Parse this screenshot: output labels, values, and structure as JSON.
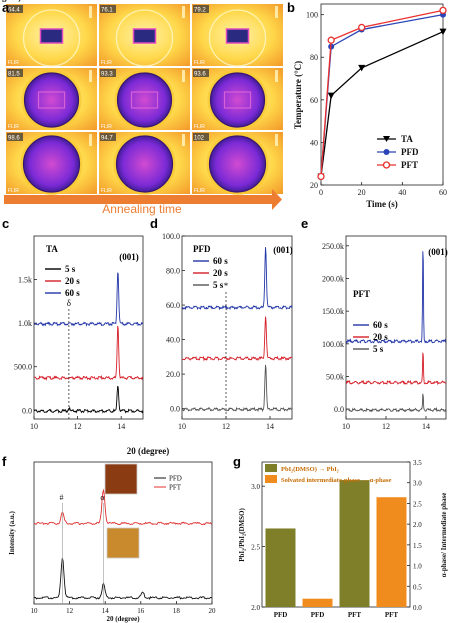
{
  "panels": {
    "a": {
      "label": "a",
      "caption": "Annealing time",
      "readouts": [
        [
          "64.4",
          "76.1",
          "79.2"
        ],
        [
          "81.5",
          "93.3",
          "93.6"
        ],
        [
          "98.6",
          "94.7",
          "102"
        ]
      ],
      "brand": "FLIR",
      "colors": {
        "arrow": "#ed7d31",
        "hot": "#ffe24a",
        "ring": "#f7c72f"
      }
    },
    "b": {
      "label": "b"
    },
    "c": {
      "label": "c"
    },
    "d": {
      "label": "d"
    },
    "e": {
      "label": "e"
    },
    "f": {
      "label": "f"
    },
    "g": {
      "label": "g"
    }
  },
  "chart_data": [
    {
      "id": "b",
      "type": "line",
      "x": [
        0,
        5,
        20,
        60
      ],
      "xlabel": "Time (s)",
      "ylabel": "Temperature (°C)",
      "xlim": [
        0,
        60
      ],
      "ylim": [
        20,
        105
      ],
      "xticks": [
        "0",
        "20",
        "40",
        "60"
      ],
      "yticks": [
        "20",
        "40",
        "60",
        "80",
        "100"
      ],
      "legend_position": "bottom-right",
      "series": [
        {
          "name": "TA",
          "values": [
            24,
            62,
            75,
            92
          ],
          "color": "#000000",
          "marker": "triangle-down"
        },
        {
          "name": "PFD",
          "values": [
            24,
            85,
            93,
            100
          ],
          "color": "#2b45b6",
          "marker": "circle"
        },
        {
          "name": "PFT",
          "values": [
            24,
            88,
            94,
            102
          ],
          "color": "#e8302e",
          "marker": "circle-open"
        }
      ]
    },
    {
      "id": "c",
      "type": "line",
      "title": "TA",
      "xlabel": "20 (degree)",
      "xlim": [
        10,
        15
      ],
      "ylim": [
        -100,
        2000
      ],
      "xticks": [
        "10",
        "12",
        "14"
      ],
      "yticks": [
        "0.0",
        "500.0",
        "1.0k",
        "1.5k"
      ],
      "peak_label": "(001)",
      "marker_label": "δ",
      "marker_x": 11.6,
      "legend_position": "top-left",
      "series": [
        {
          "name": "5 s",
          "color": "#000000",
          "offset": 0,
          "peaks": [
            {
              "x": 11.6,
              "h": 40
            },
            {
              "x": 13.85,
              "h": 300
            }
          ]
        },
        {
          "name": "20 s",
          "color": "#d6202a",
          "offset": 380,
          "peaks": [
            {
              "x": 13.85,
              "h": 620
            }
          ]
        },
        {
          "name": "60 s",
          "color": "#2437a8",
          "offset": 1000,
          "peaks": [
            {
              "x": 13.85,
              "h": 620
            }
          ]
        }
      ]
    },
    {
      "id": "d",
      "type": "line",
      "title": "PFD",
      "xlabel": "20 (degree)",
      "xlim": [
        10,
        15
      ],
      "ylim": [
        -6000,
        100000
      ],
      "xticks": [
        "10",
        "12",
        "14"
      ],
      "yticks": [
        "0.0",
        "20.0",
        "40.0",
        "60.0",
        "80.0",
        "100.0"
      ],
      "peak_label": "(001)",
      "marker_label": "*",
      "marker_x": 12.0,
      "legend_position": "top-left",
      "series": [
        {
          "name": "60 s",
          "color": "#2437a8",
          "offset": 59000,
          "peaks": [
            {
              "x": 13.8,
              "h": 36000
            }
          ]
        },
        {
          "name": "20 s",
          "color": "#d6202a",
          "offset": 29500,
          "peaks": [
            {
              "x": 13.8,
              "h": 25000
            }
          ]
        },
        {
          "name": "5 s",
          "color": "#555555",
          "offset": 0,
          "peaks": [
            {
              "x": 13.8,
              "h": 26000
            }
          ]
        }
      ]
    },
    {
      "id": "e",
      "type": "line",
      "title": "PFT",
      "xlim": [
        10,
        15
      ],
      "ylim": [
        -15000,
        265000
      ],
      "xticks": [
        "10",
        "12",
        "14"
      ],
      "yticks": [
        "0.0",
        "50.0k",
        "100.0k",
        "150.0k",
        "200.0k",
        "250.0k"
      ],
      "peak_label": "(001)",
      "legend_position": "middle-left",
      "series": [
        {
          "name": "60 s",
          "color": "#2437a8",
          "offset": 105000,
          "peaks": [
            {
              "x": 13.85,
              "h": 150000
            }
          ]
        },
        {
          "name": "20 s",
          "color": "#d6202a",
          "offset": 42000,
          "peaks": [
            {
              "x": 13.85,
              "h": 48000
            }
          ]
        },
        {
          "name": "5 s",
          "color": "#555555",
          "offset": 0,
          "peaks": [
            {
              "x": 13.85,
              "h": 25000
            }
          ]
        }
      ]
    },
    {
      "id": "f",
      "type": "line",
      "xlabel": "20 (degree)",
      "ylabel": "Intensity (a.u.)",
      "xlim": [
        10,
        20
      ],
      "xticks": [
        "10",
        "12",
        "14",
        "16",
        "18",
        "20"
      ],
      "markers": [
        {
          "label": "#",
          "x": 11.6
        },
        {
          "label": "α",
          "x": 13.9
        }
      ],
      "legend_position": "top-right",
      "series": [
        {
          "name": "PFD",
          "color": "#111111",
          "offset": 0,
          "peaks": [
            {
              "x": 11.6,
              "h": 30
            },
            {
              "x": 13.9,
              "h": 10
            },
            {
              "x": 16.1,
              "h": 4
            }
          ]
        },
        {
          "name": "PFT",
          "color": "#e03030",
          "offset": 55,
          "peaks": [
            {
              "x": 11.6,
              "h": 8
            },
            {
              "x": 13.9,
              "h": 25
            }
          ]
        }
      ],
      "photo_colors": [
        "#8a3b12",
        "#c98a2e"
      ]
    },
    {
      "id": "g",
      "type": "bar",
      "categories": [
        "PFD",
        "PFD",
        "PFT",
        "PFT"
      ],
      "ylabel": "PbI₂/PbI₂(DMSO)",
      "ylabel_right": "α-phase/ Intermediate phase",
      "ylim": [
        2.0,
        3.2
      ],
      "ylim_right": [
        0,
        3.5
      ],
      "yticks": [
        "2.0",
        "2.5",
        "3.0"
      ],
      "yticks_right": [
        "0.0",
        "0.5",
        "1.0",
        "1.5",
        "2.0",
        "2.5",
        "3.0",
        "3.5"
      ],
      "legend_position": "top",
      "series": [
        {
          "name": "PbI₂(DMSO) → PbI₂",
          "color": "#7f7f2a",
          "axis": "left",
          "values": [
            2.65,
            null,
            3.05,
            null
          ]
        },
        {
          "name": "Solvated intermediate-phase → α-phase",
          "color": "#f08c1e",
          "axis": "right",
          "values": [
            null,
            0.2,
            null,
            2.65
          ]
        }
      ]
    }
  ]
}
